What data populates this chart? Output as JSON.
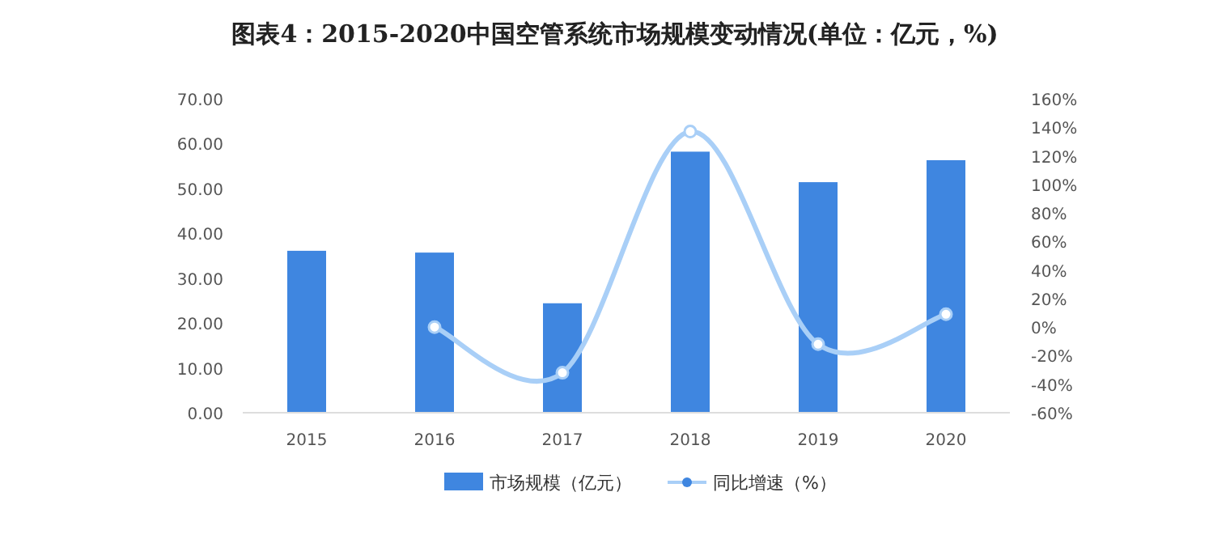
{
  "chart_data": {
    "type": "bar",
    "title": "图表4：2015-2020中国空管系统市场规模变动情况(单位：亿元，%)",
    "categories": [
      "2015",
      "2016",
      "2017",
      "2018",
      "2019",
      "2020"
    ],
    "series": [
      {
        "name": "市场规模（亿元）",
        "color": "#3f86e0",
        "values": [
          36.1,
          35.7,
          24.4,
          58.2,
          51.4,
          56.3
        ]
      },
      {
        "name": "同比增速（%）",
        "type": "line",
        "axis": "y2",
        "color": "#a9cff7",
        "marker": "circle",
        "values": [
          null,
          0,
          -32,
          137,
          -12,
          9
        ]
      }
    ],
    "ylim": [
      0,
      70
    ],
    "yticks": [
      {
        "value": 0,
        "label": "0.00"
      },
      {
        "value": 10,
        "label": "10.00"
      },
      {
        "value": 20,
        "label": "20.00"
      },
      {
        "value": 30,
        "label": "30.00"
      },
      {
        "value": 40,
        "label": "40.00"
      },
      {
        "value": 50,
        "label": "50.00"
      },
      {
        "value": 60,
        "label": "60.00"
      },
      {
        "value": 70,
        "label": "70.00"
      }
    ],
    "y2lim": [
      -60,
      160
    ],
    "y2ticks": [
      {
        "value": -60,
        "label": "-60%"
      },
      {
        "value": -40,
        "label": "-40%"
      },
      {
        "value": -20,
        "label": "-20%"
      },
      {
        "value": 0,
        "label": "0%"
      },
      {
        "value": 20,
        "label": "20%"
      },
      {
        "value": 40,
        "label": "40%"
      },
      {
        "value": 60,
        "label": "60%"
      },
      {
        "value": 80,
        "label": "80%"
      },
      {
        "value": 100,
        "label": "100%"
      },
      {
        "value": 120,
        "label": "120%"
      },
      {
        "value": 140,
        "label": "140%"
      },
      {
        "value": 160,
        "label": "160%"
      }
    ],
    "grid": false,
    "legend": "bottom"
  }
}
